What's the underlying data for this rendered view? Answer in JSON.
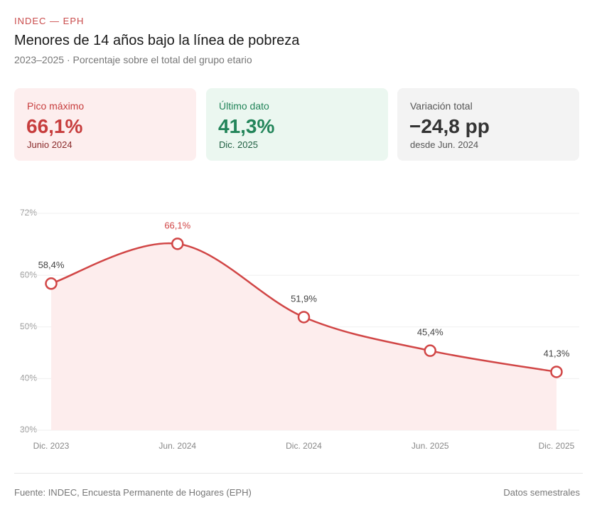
{
  "header": {
    "tag": "INDEC — EPH",
    "title": "Menores de 14 años bajo la línea de pobreza",
    "subtitle": "2023–2025 · Porcentaje sobre el total del grupo etario"
  },
  "cards": [
    {
      "label": "Pico máximo",
      "value": "66,1%",
      "note": "Junio 2024"
    },
    {
      "label": "Último dato",
      "value": "41,3%",
      "note": "Dic. 2025"
    },
    {
      "label": "Variación total",
      "value": "−24,8 pp",
      "note": "desde Jun. 2024"
    }
  ],
  "chart_data": {
    "type": "line",
    "categories": [
      "Dic. 2023",
      "Jun. 2024",
      "Dic. 2024",
      "Jun. 2025",
      "Dic. 2025"
    ],
    "values": [
      58.4,
      66.1,
      51.9,
      45.4,
      41.3
    ],
    "value_labels": [
      "58,4%",
      "66,1%",
      "51,9%",
      "45,4%",
      "41,3%"
    ],
    "color": "#d14646",
    "fill": "#fdeded",
    "ylim": [
      30,
      72
    ],
    "yticks": [
      {
        "value": 30,
        "label": "30%"
      },
      {
        "value": 40,
        "label": "40%"
      },
      {
        "value": 50,
        "label": "50%"
      },
      {
        "value": 60,
        "label": "60%"
      },
      {
        "value": 72,
        "label": "72%"
      }
    ],
    "grid": true
  },
  "footer": {
    "source": "Fuente: INDEC, Encuesta Permanente de Hogares (EPH)",
    "note": "Datos semestrales"
  }
}
